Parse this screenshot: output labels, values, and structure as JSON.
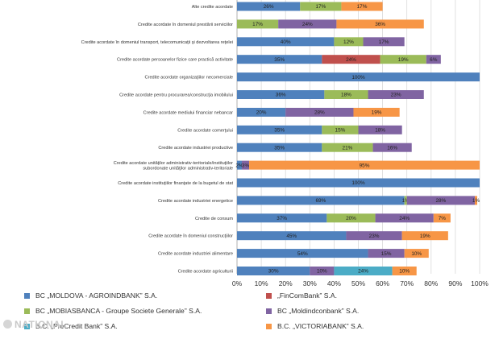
{
  "chart_data": {
    "type": "bar",
    "orientation": "horizontal",
    "stacked": true,
    "categories": [
      "Alte credite acordate",
      "Credite acordate în domeniul prestării serviciilor",
      "Credite acordate în domeniul transport, telecomunicaţii şi dezvoltarea reţelei",
      "Credite acordate persoanelor fizice care practică activitate",
      "Credite acordate organizaţiilor necomerciale",
      "Credite acordate pentru procurarea/construcţia imobilului",
      "Credite acordate mediului financiar nebancar",
      "Credite acordate comerţului",
      "Credite acordate industriei productive",
      "Credite acordate unităţilor administrativ-teritoriale/instituţiilor subordonate unităţilor administrativ-teritoriale",
      "Credite acordate instituţiilor finanţate de la bugetul de stat",
      "Credite acordate industriei energetice",
      "Credite de consum",
      "Credite acordate în domeniul construcţiilor",
      "Credite acordate industriei alimentare",
      "Credite acordate agriculturii"
    ],
    "series": [
      {
        "name": "BC „MOLDOVA - AGROINDBANK” S.A.",
        "color": "#4f81bd",
        "values": [
          26,
          0,
          40,
          35,
          100,
          36,
          20,
          35,
          35,
          2,
          100,
          69,
          37,
          45,
          54,
          30
        ]
      },
      {
        "name": "„FinComBank” S.A.",
        "color": "#c0504d",
        "values": [
          0,
          0,
          0,
          24,
          0,
          0,
          0,
          0,
          0,
          0,
          0,
          0,
          0,
          0,
          0,
          0
        ]
      },
      {
        "name": "BC „MOBIASBANCA - Groupe Societe Generale” S.A.",
        "color": "#9bbb59",
        "values": [
          17,
          17,
          12,
          19,
          0,
          18,
          0,
          15,
          21,
          0,
          0,
          1,
          20,
          0,
          0,
          0
        ]
      },
      {
        "name": "BC „Moldindconbank” S.A.",
        "color": "#8064a2",
        "values": [
          0,
          24,
          17,
          6,
          0,
          23,
          28,
          18,
          16,
          3,
          0,
          28,
          24,
          23,
          15,
          10
        ]
      },
      {
        "name": "B.C. „ProCredit Bank” S.A.",
        "color": "#4bacc6",
        "values": [
          0,
          0,
          0,
          0,
          0,
          0,
          0,
          0,
          0,
          0,
          0,
          0,
          0,
          0,
          0,
          24
        ]
      },
      {
        "name": "B.C. „VICTORIABANK” S.A.",
        "color": "#f79646",
        "values": [
          17,
          36,
          0,
          0,
          0,
          0,
          19,
          0,
          0,
          95,
          0,
          1,
          7,
          19,
          10,
          10
        ]
      }
    ],
    "bar_labels": [
      [
        "26%",
        "",
        "17%",
        "",
        "",
        "17%"
      ],
      [
        "",
        "",
        "17%",
        "24%",
        "",
        "36%"
      ],
      [
        "40%",
        "",
        "12%",
        "17%",
        "",
        ""
      ],
      [
        "35%",
        "24%",
        "19%",
        "6%",
        "",
        ""
      ],
      [
        "100%",
        "",
        "",
        "",
        "",
        ""
      ],
      [
        "36%",
        "",
        "18%",
        "23%",
        "",
        ""
      ],
      [
        "20%",
        "",
        "",
        "28%",
        "",
        "19%"
      ],
      [
        "35%",
        "",
        "15%",
        "18%",
        "",
        ""
      ],
      [
        "35%",
        "",
        "21%",
        "16%",
        "",
        ""
      ],
      [
        "2%",
        "",
        "",
        "3%",
        "",
        "95%"
      ],
      [
        "100%",
        "",
        "",
        "",
        "",
        ""
      ],
      [
        "69%",
        "",
        "1%",
        "28%",
        "",
        "1%"
      ],
      [
        "37%",
        "",
        "20%",
        "24%",
        "",
        "7%"
      ],
      [
        "45%",
        "",
        "",
        "23%",
        "",
        "19%"
      ],
      [
        "54%",
        "",
        "",
        "15%",
        "",
        "10%"
      ],
      [
        "30%",
        "",
        "",
        "10%",
        "24%",
        "10%"
      ]
    ],
    "x_ticks": [
      "0%",
      "10%",
      "20%",
      "30%",
      "40%",
      "50%",
      "60%",
      "70%",
      "80%",
      "90%",
      "100%"
    ],
    "xlim": [
      0,
      100
    ],
    "grid": true,
    "legend": "bottom"
  },
  "watermark": "NATIONAL"
}
